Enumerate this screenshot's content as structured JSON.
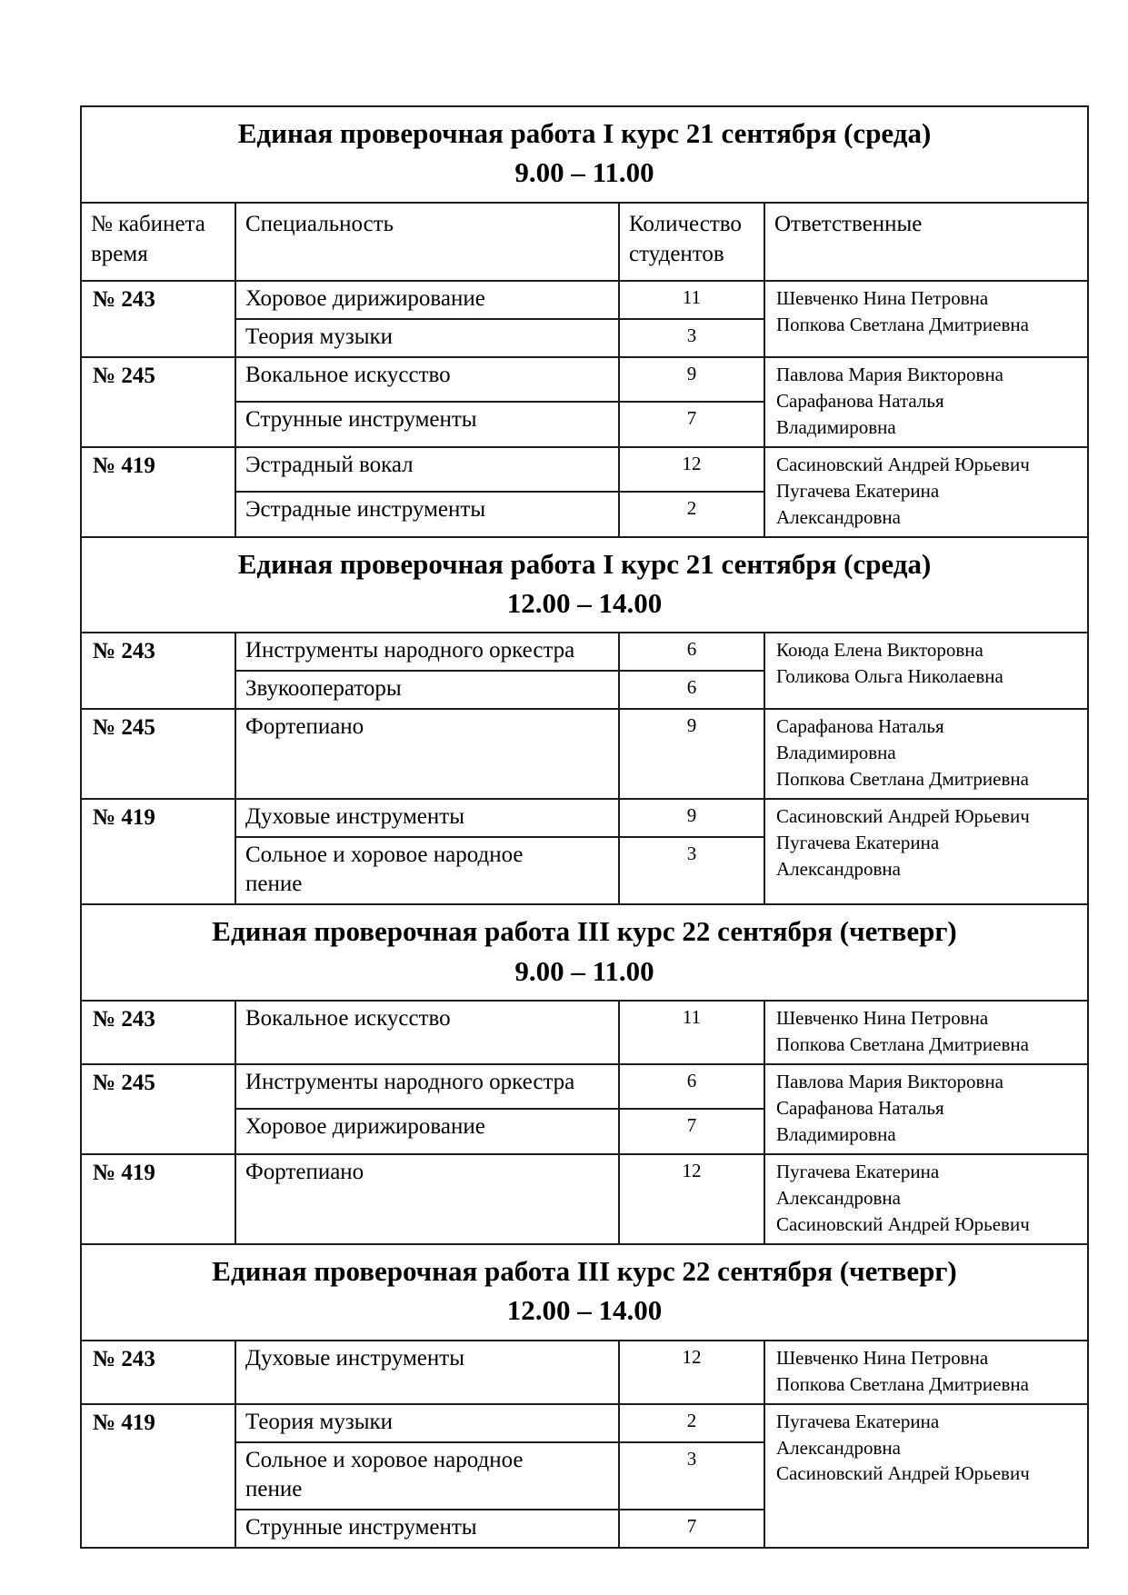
{
  "document": {
    "background": "#ffffff",
    "text_color": "#000000",
    "border_color": "#1c1c1c"
  },
  "table": {
    "header": {
      "room": "№ кабинета\nвремя",
      "specialty": "Специальность",
      "count": "Количество\nстудентов",
      "responsible": "Ответственные"
    },
    "sections": [
      {
        "title": "Единая проверочная работа I курс 21 сентября (среда)",
        "time": "9.00 – 11.00",
        "show_header": true,
        "groups": [
          {
            "room": "№ 243",
            "rows": [
              {
                "specialty": "Хоровое дирижирование",
                "count": "11"
              },
              {
                "specialty": "Теория музыки",
                "count": "3"
              }
            ],
            "responsible": [
              "Шевченко Нина Петровна",
              "Попкова Светлана Дмитриевна"
            ]
          },
          {
            "room": "№ 245",
            "rows": [
              {
                "specialty": "Вокальное искусство",
                "count": "9"
              },
              {
                "specialty": "Струнные инструменты",
                "count": "7"
              }
            ],
            "responsible": [
              "Павлова Мария Викторовна",
              "Сарафанова Наталья\nВладимировна"
            ]
          },
          {
            "room": "№ 419",
            "rows": [
              {
                "specialty": "Эстрадный вокал",
                "count": "12"
              },
              {
                "specialty": "Эстрадные инструменты",
                "count": "2"
              }
            ],
            "responsible": [
              "Сасиновский Андрей Юрьевич",
              "Пугачева Екатерина\nАлександровна"
            ]
          }
        ]
      },
      {
        "title": "Единая проверочная работа I курс 21 сентября (среда)",
        "time": "12.00 – 14.00",
        "show_header": false,
        "groups": [
          {
            "room": "№ 243",
            "rows": [
              {
                "specialty": "Инструменты народного оркестра",
                "count": "6"
              },
              {
                "specialty": "Звукооператоры",
                "count": "6"
              }
            ],
            "responsible": [
              "Коюда Елена Викторовна",
              "Голикова Ольга Николаевна"
            ]
          },
          {
            "room": "№ 245",
            "rows": [
              {
                "specialty": "Фортепиано",
                "count": "9"
              }
            ],
            "responsible": [
              "Сарафанова Наталья\nВладимировна",
              "Попкова Светлана Дмитриевна"
            ]
          },
          {
            "room": "№ 419",
            "rows": [
              {
                "specialty": "Духовые инструменты",
                "count": "9"
              },
              {
                "specialty": "Сольное и хоровое народное\nпение",
                "count": "3"
              }
            ],
            "responsible": [
              "Сасиновский Андрей Юрьевич",
              "Пугачева Екатерина\nАлександровна"
            ]
          }
        ]
      },
      {
        "title": "Единая проверочная работа III курс 22 сентября (четверг)",
        "time": "9.00 – 11.00",
        "show_header": false,
        "groups": [
          {
            "room": "№ 243",
            "rows": [
              {
                "specialty": "Вокальное искусство",
                "count": "11"
              }
            ],
            "responsible": [
              "Шевченко Нина Петровна",
              "Попкова Светлана Дмитриевна"
            ]
          },
          {
            "room": "№ 245",
            "rows": [
              {
                "specialty": "Инструменты народного оркестра",
                "count": "6"
              },
              {
                "specialty": "Хоровое дирижирование",
                "count": "7"
              }
            ],
            "responsible": [
              "Павлова Мария Викторовна",
              "Сарафанова Наталья\nВладимировна"
            ]
          },
          {
            "room": "№ 419",
            "rows": [
              {
                "specialty": "Фортепиано",
                "count": "12"
              }
            ],
            "responsible": [
              "Пугачева Екатерина\nАлександровна",
              "Сасиновский Андрей Юрьевич"
            ]
          }
        ]
      },
      {
        "title": "Единая проверочная работа III курс 22 сентября (четверг)",
        "time": "12.00 – 14.00",
        "show_header": false,
        "groups": [
          {
            "room": "№ 243",
            "rows": [
              {
                "specialty": "Духовые инструменты",
                "count": "12"
              }
            ],
            "responsible": [
              "Шевченко Нина Петровна",
              "Попкова Светлана Дмитриевна"
            ]
          },
          {
            "room": "№ 419",
            "rows": [
              {
                "specialty": "Теория музыки",
                "count": "2"
              },
              {
                "specialty": "Сольное и хоровое народное\nпение",
                "count": "3"
              },
              {
                "specialty": "Струнные инструменты",
                "count": "7"
              }
            ],
            "responsible": [
              "Пугачева Екатерина\nАлександровна",
              "Сасиновский Андрей Юрьевич"
            ]
          }
        ]
      }
    ]
  }
}
